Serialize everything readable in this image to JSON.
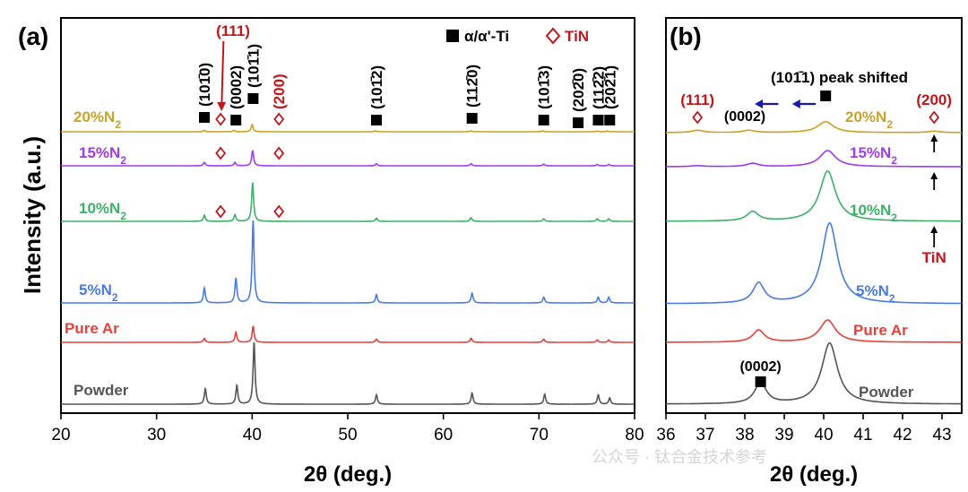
{
  "figure": {
    "ylabel": "Intensity (a.u.)",
    "watermark": "公众号 · 钛合金技术参考"
  },
  "colors": {
    "powder": "#555555",
    "pure_ar": "#e8403a",
    "n5": "#4a7be3",
    "n10": "#3db06a",
    "n15": "#9d3dec",
    "n20": "#c9a227",
    "tin": "#c0161b",
    "arrow_blue": "#1a1aa8"
  },
  "legend": {
    "alpha": "α/α'-Ti",
    "tin": "TiN"
  },
  "chart_data": [
    {
      "panel": "(a)",
      "type": "line",
      "xlabel": "2θ (deg.)",
      "ylabel": "Intensity (a.u.)",
      "xlim": [
        20,
        80
      ],
      "xticks": [
        20,
        30,
        40,
        50,
        60,
        70,
        80
      ],
      "grid": false,
      "series": [
        {
          "name": "Powder",
          "color_key": "powder",
          "peaks": [
            [
              35.1,
              0.25
            ],
            [
              38.4,
              0.3
            ],
            [
              40.2,
              1.0
            ],
            [
              53.0,
              0.15
            ],
            [
              63.0,
              0.18
            ],
            [
              70.6,
              0.16
            ],
            [
              76.2,
              0.15
            ],
            [
              77.4,
              0.1
            ]
          ]
        },
        {
          "name": "Pure Ar",
          "color_key": "pure_ar",
          "peaks": [
            [
              35.0,
              0.1
            ],
            [
              38.3,
              0.25
            ],
            [
              40.1,
              0.4
            ],
            [
              53.0,
              0.08
            ],
            [
              62.9,
              0.1
            ],
            [
              70.5,
              0.08
            ],
            [
              76.1,
              0.06
            ],
            [
              77.3,
              0.06
            ]
          ]
        },
        {
          "name": "5%N2",
          "color_key": "n5",
          "peaks": [
            [
              35.0,
              0.18
            ],
            [
              38.3,
              0.3
            ],
            [
              40.1,
              1.0
            ],
            [
              53.0,
              0.1
            ],
            [
              63.0,
              0.12
            ],
            [
              70.5,
              0.07
            ],
            [
              76.2,
              0.07
            ],
            [
              77.3,
              0.07
            ]
          ]
        },
        {
          "name": "10%N2",
          "color_key": "n10",
          "peaks": [
            [
              35.0,
              0.12
            ],
            [
              38.2,
              0.13
            ],
            [
              40.05,
              0.75
            ],
            [
              53.0,
              0.06
            ],
            [
              62.9,
              0.07
            ],
            [
              70.5,
              0.05
            ],
            [
              76.1,
              0.05
            ],
            [
              77.3,
              0.05
            ]
          ]
        },
        {
          "name": "15%N2",
          "color_key": "n15",
          "peaks": [
            [
              35.0,
              0.1
            ],
            [
              38.2,
              0.1
            ],
            [
              40.05,
              0.45
            ],
            [
              53.0,
              0.06
            ],
            [
              62.9,
              0.06
            ],
            [
              70.5,
              0.05
            ],
            [
              76.1,
              0.04
            ],
            [
              77.3,
              0.04
            ]
          ]
        },
        {
          "name": "20%N2",
          "color_key": "n20",
          "peaks": [
            [
              35.0,
              0.06
            ],
            [
              38.1,
              0.06
            ],
            [
              40.0,
              0.3
            ],
            [
              52.9,
              0.04
            ],
            [
              62.9,
              0.04
            ],
            [
              70.4,
              0.04
            ],
            [
              76.1,
              0.03
            ],
            [
              77.2,
              0.03
            ]
          ]
        }
      ],
      "annotations": {
        "alpha_planes": [
          {
            "label": "(101̄0)",
            "x": 35.0
          },
          {
            "label": "(0002)",
            "x": 38.3
          },
          {
            "label": "(101̄1)",
            "x": 40.1
          },
          {
            "label": "(101̄2)",
            "x": 53.0
          },
          {
            "label": "(112̄0)",
            "x": 63.0
          },
          {
            "label": "(101̄3)",
            "x": 70.5
          },
          {
            "label": "(202̄0)",
            "x": 74.1
          },
          {
            "label": "(112̄2)",
            "x": 76.2
          },
          {
            "label": "(202̄1)",
            "x": 77.4
          }
        ],
        "tin_planes": [
          {
            "label": "(111)",
            "x": 36.7
          },
          {
            "label": "(200)",
            "x": 42.8
          }
        ]
      }
    },
    {
      "panel": "(b)",
      "type": "line",
      "xlabel": "2θ (deg.)",
      "xlim": [
        36,
        43.5
      ],
      "xticks": [
        36,
        37,
        38,
        39,
        40,
        41,
        42,
        43
      ],
      "grid": false,
      "series": [
        {
          "name": "Powder",
          "color_key": "powder",
          "peaks": [
            [
              38.4,
              0.35
            ],
            [
              40.15,
              1.0
            ]
          ]
        },
        {
          "name": "Pure Ar",
          "color_key": "pure_ar",
          "peaks": [
            [
              38.35,
              0.3
            ],
            [
              40.1,
              0.55
            ]
          ]
        },
        {
          "name": "5%N2",
          "color_key": "n5",
          "peaks": [
            [
              38.35,
              0.25
            ],
            [
              40.15,
              1.0
            ]
          ]
        },
        {
          "name": "10%N2",
          "color_key": "n10",
          "peaks": [
            [
              38.2,
              0.15
            ],
            [
              40.1,
              0.8
            ]
          ]
        },
        {
          "name": "15%N2",
          "color_key": "n15",
          "peaks": [
            [
              36.8,
              0.03
            ],
            [
              38.2,
              0.1
            ],
            [
              40.1,
              0.5
            ]
          ]
        },
        {
          "name": "20%N2",
          "color_key": "n20",
          "peaks": [
            [
              36.8,
              0.08
            ],
            [
              38.1,
              0.08
            ],
            [
              40.05,
              0.38
            ],
            [
              42.8,
              0.05
            ]
          ]
        }
      ],
      "annotations": {
        "peak_shift": "(101̄1) peak shifted",
        "plane_0002_top": "(0002)",
        "plane_0002_bottom": "(0002)",
        "tin_111": "(111)",
        "tin_200": "(200)",
        "tin_label": "TiN"
      }
    }
  ]
}
